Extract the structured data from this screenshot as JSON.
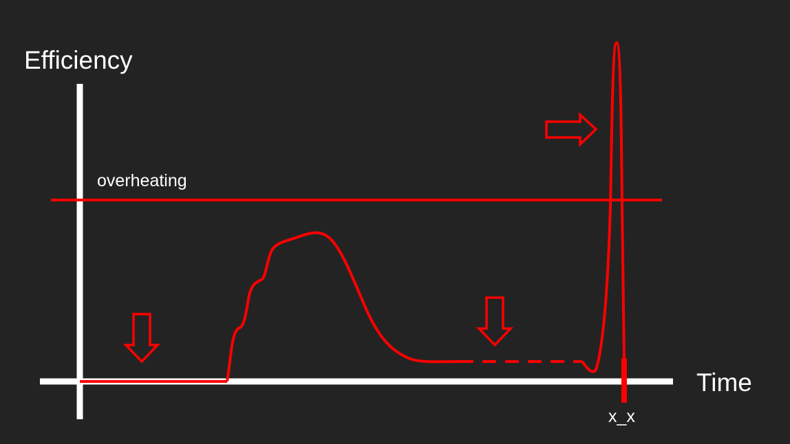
{
  "diagram": {
    "y_axis_label": "Efficiency",
    "x_axis_label": "Time",
    "threshold_label": "overheating",
    "marker_label": "x_x",
    "colors": {
      "background": "#232323",
      "axes": "#ffffff",
      "curve": "#ff0000",
      "text": "#ffffff"
    },
    "arrows": [
      {
        "name": "down-arrow-1",
        "direction": "down"
      },
      {
        "name": "down-arrow-2",
        "direction": "down"
      },
      {
        "name": "right-arrow",
        "direction": "right"
      }
    ]
  }
}
